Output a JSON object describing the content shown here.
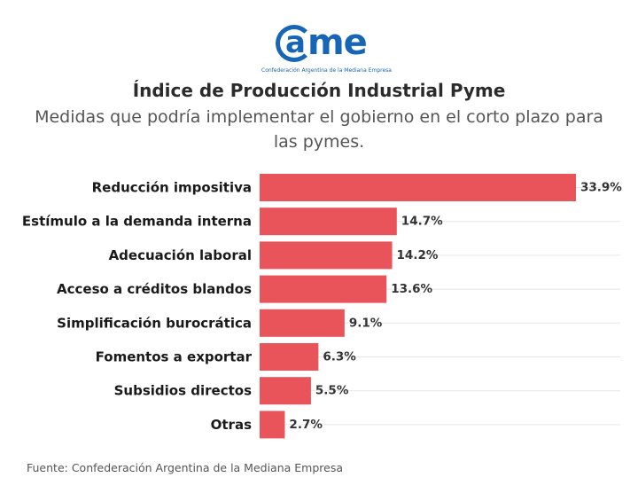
{
  "logo": {
    "word": "came",
    "tagline": "Confederación Argentina de la Mediana Empresa",
    "color": "#1666b5"
  },
  "title": "Índice de Producción Industrial Pyme",
  "subtitle": "Medidas que podría implementar el gobierno en el corto plazo para las pymes.",
  "source": "Fuente: Confederación Argentina de la Mediana Empresa",
  "chart_data": {
    "type": "bar",
    "orientation": "horizontal",
    "categories": [
      "Reducción impositiva",
      "Estímulo a la demanda interna",
      "Adecuación laboral",
      "Acceso a créditos blandos",
      "Simplificación burocrática",
      "Fomentos a exportar",
      "Subsidios directos",
      "Otras"
    ],
    "values": [
      33.9,
      14.7,
      14.2,
      13.6,
      9.1,
      6.3,
      5.5,
      2.7
    ],
    "value_labels": [
      "33.9%",
      "14.7%",
      "14.2%",
      "13.6%",
      "9.1%",
      "6.3%",
      "5.5%",
      "2.7%"
    ],
    "unit": "%",
    "xlim": [
      0,
      33.9
    ],
    "bar_color": "#e8545a",
    "grid": true
  }
}
